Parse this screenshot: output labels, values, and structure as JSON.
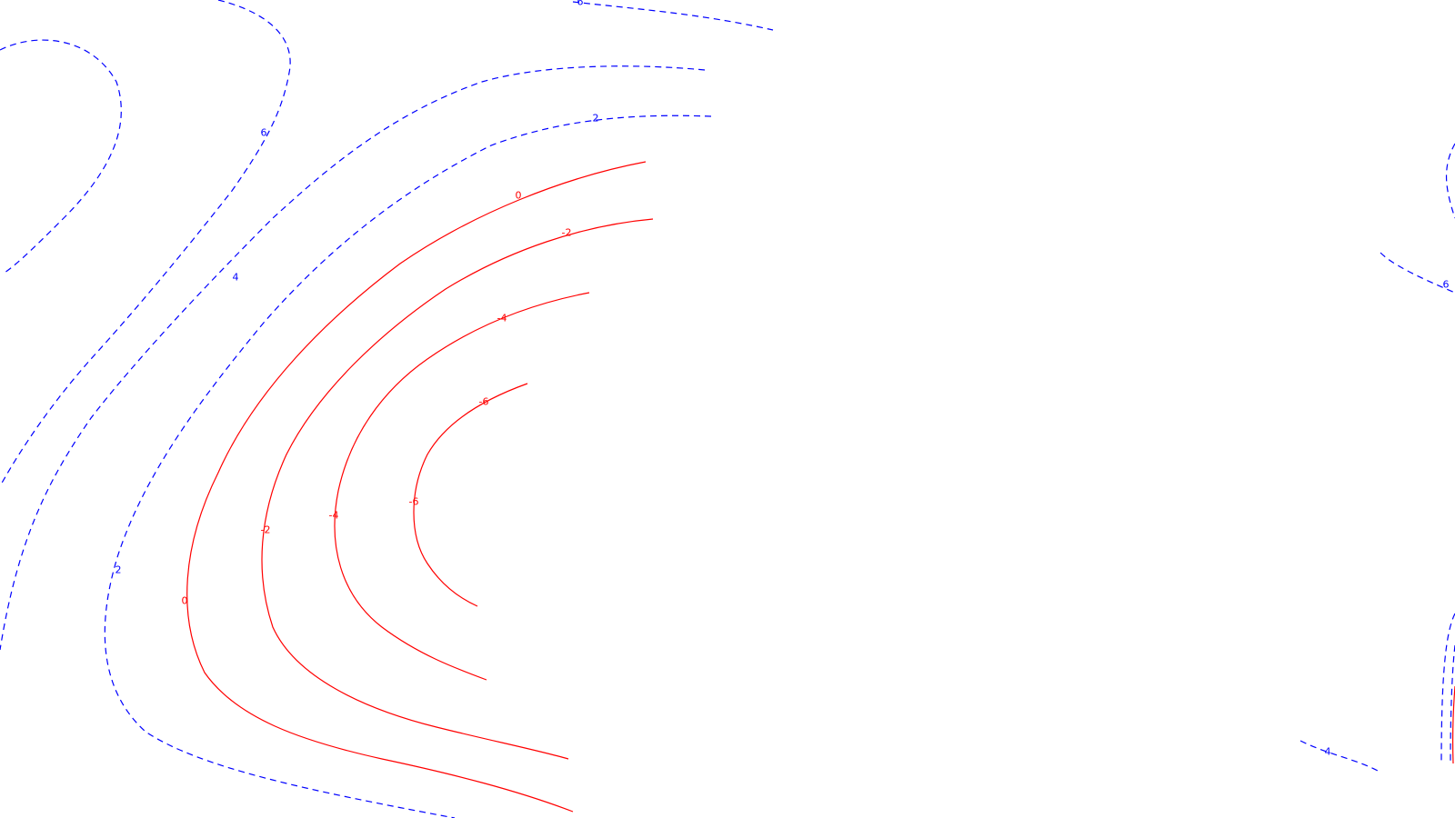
{
  "colors": {
    "positive": "#0000ff",
    "negative": "#ff0000",
    "background": "#ffffff"
  },
  "contours": [
    {
      "id": "tl-6-loop",
      "level": 6,
      "label": "",
      "sign": "positive"
    },
    {
      "id": "top-6",
      "level": 6,
      "label": "6",
      "sign": "positive"
    },
    {
      "id": "top-edge-6",
      "level": 6,
      "label": "6",
      "sign": "positive"
    },
    {
      "id": "plus-4",
      "level": 4,
      "label": "4",
      "sign": "positive"
    },
    {
      "id": "plus-2",
      "level": 2,
      "label": "2",
      "sign": "positive"
    },
    {
      "id": "inner-2",
      "level": 2,
      "label": "2",
      "sign": "positive"
    },
    {
      "id": "zero",
      "level": 0,
      "label": "0",
      "sign": "negative"
    },
    {
      "id": "minus-2",
      "level": -2,
      "label": "-2",
      "sign": "negative"
    },
    {
      "id": "minus-4",
      "level": -4,
      "label": "-4",
      "sign": "negative"
    },
    {
      "id": "minus-6",
      "level": -6,
      "label": "-6",
      "sign": "negative"
    },
    {
      "id": "right-6",
      "level": 6,
      "label": "6",
      "sign": "positive"
    },
    {
      "id": "right-top",
      "level": 4,
      "label": "",
      "sign": "positive"
    },
    {
      "id": "br-4",
      "level": 4,
      "label": "4",
      "sign": "positive"
    },
    {
      "id": "br-a",
      "level": 2,
      "label": "",
      "sign": "positive"
    },
    {
      "id": "br-b",
      "level": 2,
      "label": "",
      "sign": "positive"
    },
    {
      "id": "br-red",
      "level": 0,
      "label": "",
      "sign": "negative"
    }
  ]
}
